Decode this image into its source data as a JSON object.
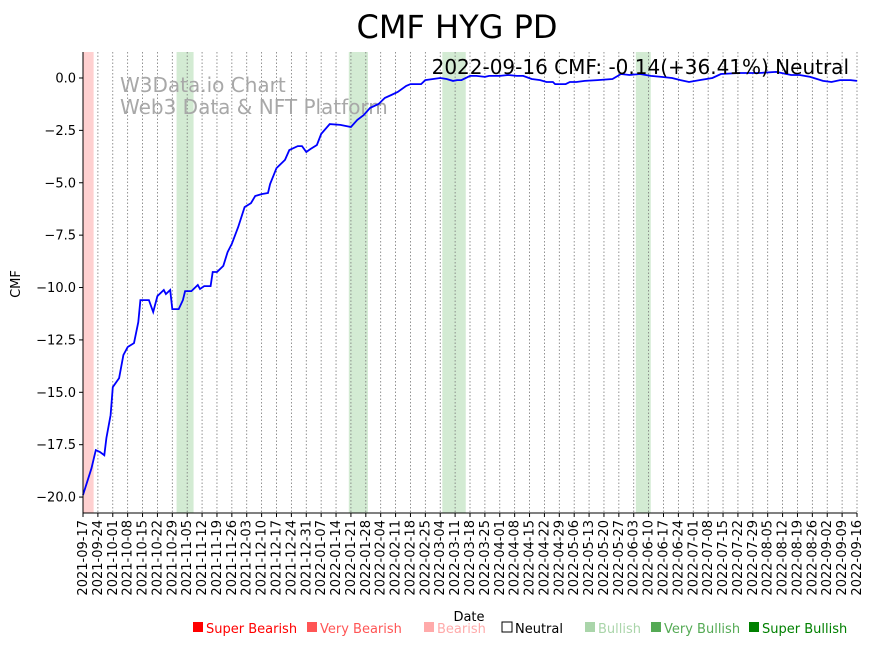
{
  "chart_data": {
    "type": "line",
    "title": "CMF HYG PD",
    "annotation": "2022-09-16 CMF: -0.14(+36.41%) Neutral",
    "watermark": [
      "W3Data.io Chart",
      "Web3 Data & NFT Platform"
    ],
    "xlabel": "Date",
    "ylabel": "CMF",
    "start_date": "2021-09-17",
    "ylim": [
      -20.76,
      1.24
    ],
    "xlim_days": [
      0,
      364
    ],
    "yticks": [
      0.0,
      -2.5,
      -5.0,
      -7.5,
      -10.0,
      -12.5,
      -15.0,
      -17.5,
      -20.0
    ],
    "ytick_labels": [
      "0.0",
      "−2.5",
      "−5.0",
      "−7.5",
      "−10.0",
      "−12.5",
      "−15.0",
      "−17.5",
      "−20.0"
    ],
    "xtick_labels": [
      "2021-09-17",
      "2021-09-24",
      "2021-10-01",
      "2021-10-08",
      "2021-10-15",
      "2021-10-22",
      "2021-10-29",
      "2021-11-05",
      "2021-11-12",
      "2021-11-19",
      "2021-11-26",
      "2021-12-03",
      "2021-12-10",
      "2021-12-17",
      "2021-12-24",
      "2021-12-31",
      "2022-01-07",
      "2022-01-14",
      "2022-01-21",
      "2022-01-28",
      "2022-02-04",
      "2022-02-11",
      "2022-02-18",
      "2022-02-25",
      "2022-03-04",
      "2022-03-11",
      "2022-03-18",
      "2022-03-25",
      "2022-04-01",
      "2022-04-08",
      "2022-04-15",
      "2022-04-22",
      "2022-04-29",
      "2022-05-06",
      "2022-05-13",
      "2022-05-20",
      "2022-05-27",
      "2022-06-03",
      "2022-06-10",
      "2022-06-17",
      "2022-06-24",
      "2022-07-01",
      "2022-07-08",
      "2022-07-15",
      "2022-07-22",
      "2022-07-29",
      "2022-08-05",
      "2022-08-12",
      "2022-08-19",
      "2022-08-26",
      "2022-09-02",
      "2022-09-09",
      "2022-09-16"
    ],
    "series": [
      {
        "name": "CMF",
        "color": "#0000ff",
        "points_day_value": [
          [
            0,
            -19.9
          ],
          [
            4,
            -18.62
          ],
          [
            6,
            -17.76
          ],
          [
            8,
            -17.85
          ],
          [
            10,
            -18.0
          ],
          [
            11,
            -17.18
          ],
          [
            13,
            -16.09
          ],
          [
            14,
            -14.75
          ],
          [
            17,
            -14.32
          ],
          [
            19,
            -13.22
          ],
          [
            21,
            -12.84
          ],
          [
            24,
            -12.65
          ],
          [
            26,
            -11.65
          ],
          [
            27,
            -10.6
          ],
          [
            31,
            -10.6
          ],
          [
            33,
            -11.17
          ],
          [
            35,
            -10.41
          ],
          [
            38,
            -10.12
          ],
          [
            39,
            -10.31
          ],
          [
            41,
            -10.12
          ],
          [
            42,
            -11.03
          ],
          [
            45,
            -11.03
          ],
          [
            47,
            -10.6
          ],
          [
            48,
            -10.17
          ],
          [
            51,
            -10.17
          ],
          [
            54,
            -9.88
          ],
          [
            55,
            -10.07
          ],
          [
            57,
            -9.93
          ],
          [
            60,
            -9.93
          ],
          [
            61,
            -9.26
          ],
          [
            63,
            -9.26
          ],
          [
            66,
            -8.97
          ],
          [
            68,
            -8.31
          ],
          [
            70,
            -7.92
          ],
          [
            73,
            -7.11
          ],
          [
            76,
            -6.16
          ],
          [
            79,
            -5.97
          ],
          [
            81,
            -5.63
          ],
          [
            84,
            -5.54
          ],
          [
            87,
            -5.49
          ],
          [
            88,
            -5.06
          ],
          [
            91,
            -4.3
          ],
          [
            95,
            -3.91
          ],
          [
            97,
            -3.44
          ],
          [
            101,
            -3.25
          ],
          [
            103,
            -3.25
          ],
          [
            105,
            -3.53
          ],
          [
            107,
            -3.39
          ],
          [
            110,
            -3.2
          ],
          [
            112,
            -2.67
          ],
          [
            116,
            -2.2
          ],
          [
            121,
            -2.24
          ],
          [
            126,
            -2.34
          ],
          [
            129,
            -2.0
          ],
          [
            132,
            -1.77
          ],
          [
            135,
            -1.43
          ],
          [
            139,
            -1.24
          ],
          [
            142,
            -0.95
          ],
          [
            145,
            -0.81
          ],
          [
            148,
            -0.67
          ],
          [
            152,
            -0.38
          ],
          [
            154,
            -0.29
          ],
          [
            159,
            -0.29
          ],
          [
            161,
            -0.1
          ],
          [
            168,
            0.0
          ],
          [
            171,
            -0.05
          ],
          [
            174,
            -0.14
          ],
          [
            176,
            -0.1
          ],
          [
            178,
            -0.1
          ],
          [
            182,
            0.1
          ],
          [
            185,
            0.1
          ],
          [
            189,
            0.05
          ],
          [
            191,
            0.1
          ],
          [
            196,
            0.1
          ],
          [
            200,
            0.14
          ],
          [
            204,
            0.1
          ],
          [
            207,
            0.1
          ],
          [
            211,
            -0.05
          ],
          [
            215,
            -0.1
          ],
          [
            218,
            -0.19
          ],
          [
            221,
            -0.19
          ],
          [
            222,
            -0.29
          ],
          [
            227,
            -0.29
          ],
          [
            229,
            -0.19
          ],
          [
            232,
            -0.19
          ],
          [
            236,
            -0.14
          ],
          [
            242,
            -0.1
          ],
          [
            249,
            -0.05
          ],
          [
            253,
            0.19
          ],
          [
            257,
            0.14
          ],
          [
            262,
            0.19
          ],
          [
            267,
            0.1
          ],
          [
            272,
            0.05
          ],
          [
            277,
            0.0
          ],
          [
            281,
            -0.1
          ],
          [
            285,
            -0.19
          ],
          [
            290,
            -0.1
          ],
          [
            296,
            0.0
          ],
          [
            300,
            0.19
          ],
          [
            309,
            0.24
          ],
          [
            318,
            0.24
          ],
          [
            326,
            0.29
          ],
          [
            333,
            0.14
          ],
          [
            337,
            0.14
          ],
          [
            342,
            0.05
          ],
          [
            348,
            -0.14
          ],
          [
            352,
            -0.19
          ],
          [
            356,
            -0.1
          ],
          [
            361,
            -0.1
          ],
          [
            364,
            -0.14
          ]
        ]
      }
    ],
    "shaded_regions": [
      {
        "start_day": 0,
        "end_day": 5,
        "signal": "Bearish",
        "color": "#ffd0d0"
      },
      {
        "start_day": 44,
        "end_day": 52,
        "signal": "Bullish",
        "color": "#d3ebd3"
      },
      {
        "start_day": 125,
        "end_day": 134,
        "signal": "Bullish",
        "color": "#d3ebd3"
      },
      {
        "start_day": 169,
        "end_day": 180,
        "signal": "Bullish",
        "color": "#d3ebd3"
      },
      {
        "start_day": 260,
        "end_day": 267,
        "signal": "Bullish",
        "color": "#d3ebd3"
      }
    ],
    "legend_position": "bottom",
    "legend": [
      {
        "label": "Super Bearish",
        "color": "#ff0000",
        "filled": true
      },
      {
        "label": "Very Bearish",
        "color": "#ff5555",
        "filled": true
      },
      {
        "label": "Bearish",
        "color": "#ffaaaa",
        "filled": true
      },
      {
        "label": "Neutral",
        "color": "#000000",
        "filled": false
      },
      {
        "label": "Bullish",
        "color": "#aad5aa",
        "filled": true
      },
      {
        "label": "Very Bullish",
        "color": "#55aa55",
        "filled": true
      },
      {
        "label": "Super Bullish",
        "color": "#008000",
        "filled": true
      }
    ],
    "grid": "vertical dotted"
  }
}
